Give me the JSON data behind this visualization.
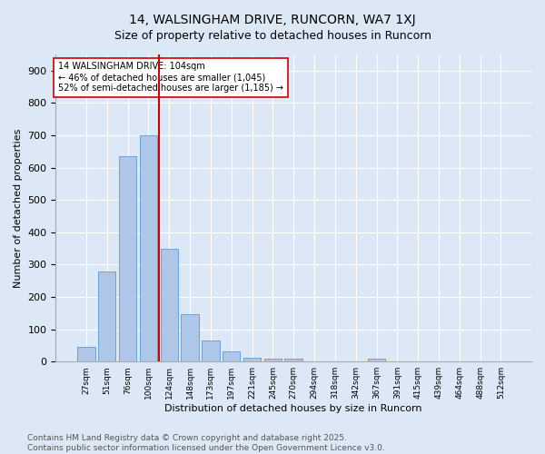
{
  "title": "14, WALSINGHAM DRIVE, RUNCORN, WA7 1XJ",
  "subtitle": "Size of property relative to detached houses in Runcorn",
  "xlabel": "Distribution of detached houses by size in Runcorn",
  "ylabel": "Number of detached properties",
  "bar_labels": [
    "27sqm",
    "51sqm",
    "76sqm",
    "100sqm",
    "124sqm",
    "148sqm",
    "173sqm",
    "197sqm",
    "221sqm",
    "245sqm",
    "270sqm",
    "294sqm",
    "318sqm",
    "342sqm",
    "367sqm",
    "391sqm",
    "415sqm",
    "439sqm",
    "464sqm",
    "488sqm",
    "512sqm"
  ],
  "bar_values": [
    45,
    280,
    635,
    700,
    350,
    147,
    65,
    32,
    13,
    10,
    10,
    0,
    0,
    0,
    8,
    0,
    0,
    0,
    0,
    0,
    0
  ],
  "bar_color": "#aec6e8",
  "bar_edge_color": "#5b9bd5",
  "vline_x": 3.5,
  "vline_color": "#cc0000",
  "annotation_text": "14 WALSINGHAM DRIVE: 104sqm\n← 46% of detached houses are smaller (1,045)\n52% of semi-detached houses are larger (1,185) →",
  "annotation_box_color": "#ffffff",
  "annotation_box_edge": "#cc0000",
  "ylim": [
    0,
    950
  ],
  "yticks": [
    0,
    100,
    200,
    300,
    400,
    500,
    600,
    700,
    800,
    900
  ],
  "bg_color": "#dce8f5",
  "plot_bg_color": "#dce8f5",
  "footer_text": "Contains HM Land Registry data © Crown copyright and database right 2025.\nContains public sector information licensed under the Open Government Licence v3.0.",
  "title_fontsize": 10,
  "xlabel_fontsize": 8,
  "ylabel_fontsize": 8,
  "footer_fontsize": 6.5
}
